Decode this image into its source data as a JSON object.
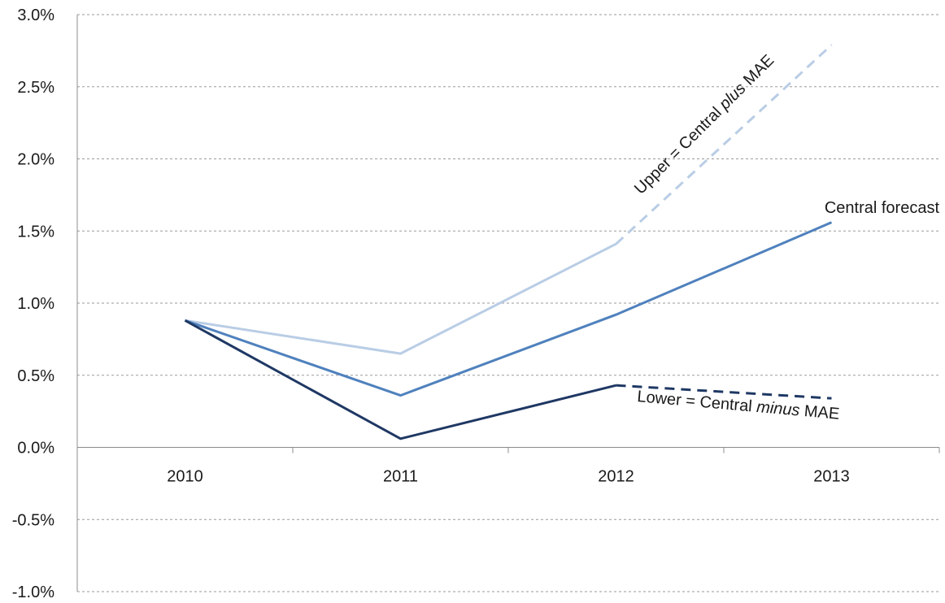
{
  "chart_data": {
    "type": "line",
    "categories": [
      "2010",
      "2011",
      "2012",
      "2013"
    ],
    "ylim": [
      -0.01,
      0.03
    ],
    "yticks": [
      "-1.0%",
      "-0.5%",
      "0.0%",
      "0.5%",
      "1.0%",
      "1.5%",
      "2.0%",
      "2.5%",
      "3.0%"
    ],
    "grid": true,
    "series": [
      {
        "key": "upper",
        "color": "#b9cde5",
        "values": [
          0.0088,
          0.0065,
          0.0141,
          0.0279
        ],
        "dashed_from_index": 2
      },
      {
        "key": "central",
        "color": "#4f81bd",
        "values": [
          0.0088,
          0.0036,
          0.0092,
          0.0156
        ]
      },
      {
        "key": "lower",
        "color": "#1f3864",
        "values": [
          0.0088,
          0.0006,
          0.0043,
          0.0034
        ],
        "dashed_from_index": 2
      }
    ],
    "annotations": {
      "upper_prefix": "Upper = Central ",
      "upper_italic": "plus",
      "upper_suffix": " MAE",
      "central": "Central forecast",
      "lower_prefix": "Lower = Central ",
      "lower_italic": "minus",
      "lower_suffix": " MAE"
    }
  }
}
